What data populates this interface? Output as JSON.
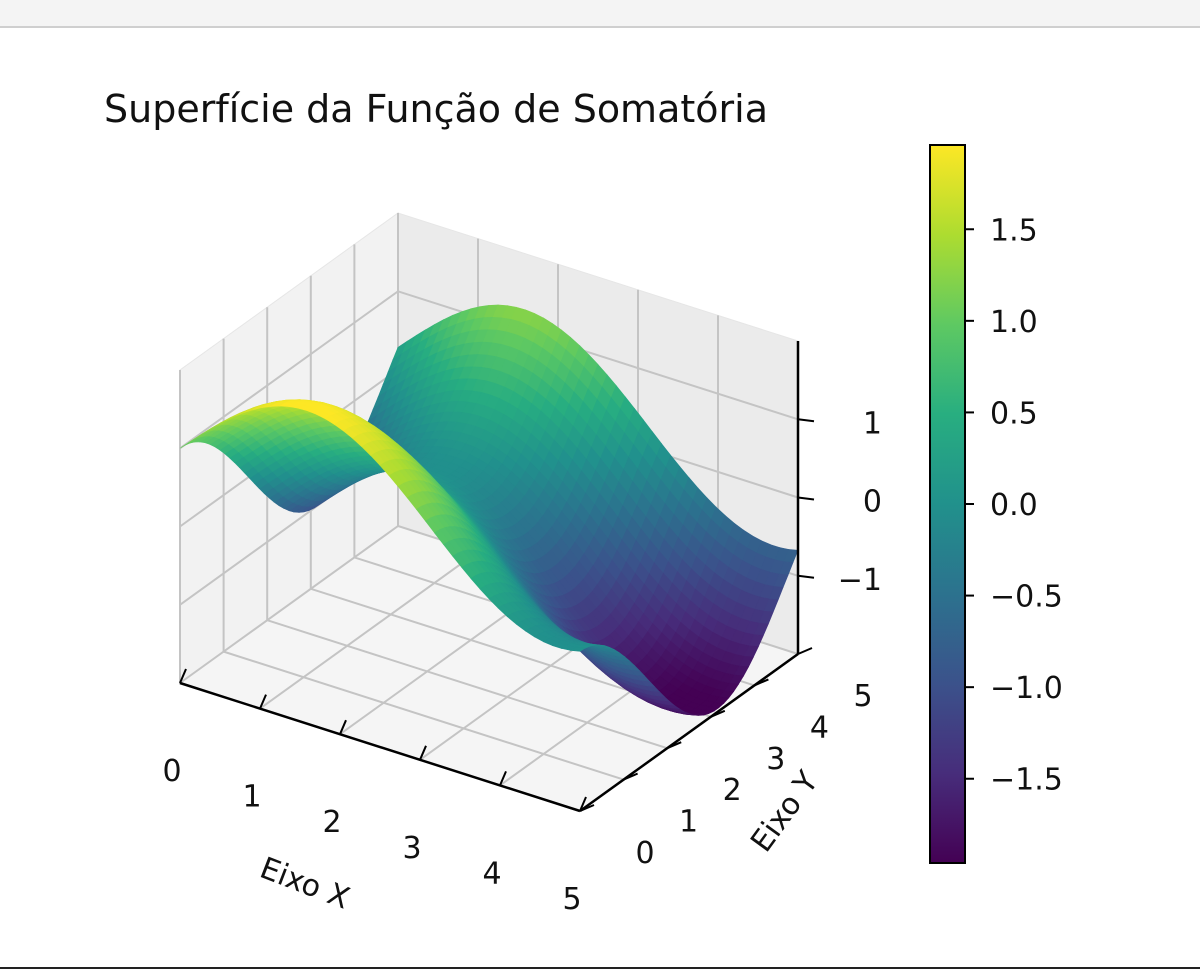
{
  "chart_data": {
    "type": "surface",
    "title": "Superfície da Função de Somatória",
    "xlabel": "Eixo X",
    "ylabel": "Eixo Y",
    "zlabel": "",
    "function": "z = sin(x) + cos(y)",
    "x_range": [
      0,
      5
    ],
    "y_range": [
      0,
      5
    ],
    "z_range": [
      -2,
      2
    ],
    "x_ticks": [
      "0",
      "1",
      "2",
      "3",
      "4",
      "5"
    ],
    "y_ticks": [
      "0",
      "1",
      "2",
      "3",
      "4",
      "5"
    ],
    "z_ticks": [
      "−1",
      "0",
      "1"
    ],
    "colormap": "viridis",
    "colorbar": {
      "range": [
        -1.96,
        1.96
      ],
      "ticks": [
        "1.5",
        "1.0",
        "0.5",
        "0.0",
        "−0.5",
        "−1.0",
        "−1.5"
      ]
    },
    "grid": true
  }
}
